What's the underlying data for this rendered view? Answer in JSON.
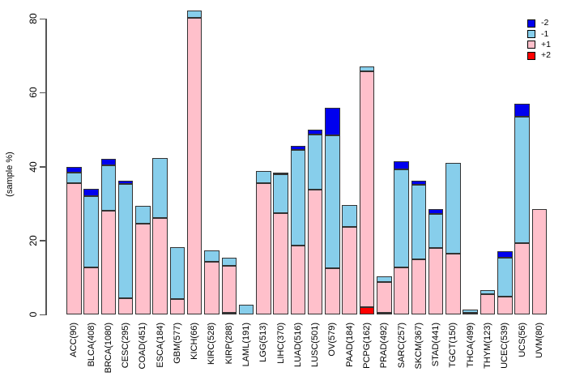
{
  "figure": {
    "y_axis": {
      "title": "(sample %)",
      "ticks": [
        0,
        20,
        40,
        60,
        80
      ]
    },
    "legend": [
      {
        "label": "-2",
        "color": "#0000EE"
      },
      {
        "label": "-1",
        "color": "#87CEEB"
      },
      {
        "label": "+1",
        "color": "#FFC0CB"
      },
      {
        "label": "+2",
        "color": "#FF0000"
      }
    ]
  },
  "chart_data": {
    "type": "bar",
    "stacked": true,
    "title": "",
    "xlabel": "",
    "ylabel": "(sample %)",
    "ylim": [
      0,
      82
    ],
    "grid": false,
    "legend_position": "top-right",
    "stack_order_bottom_to_top": [
      "+2",
      "+1",
      "-1",
      "-2"
    ],
    "categories": [
      "ACC(90)",
      "BLCA(408)",
      "BRCA(1080)",
      "CESC(295)",
      "COAD(451)",
      "ESCA(184)",
      "GBM(577)",
      "KICH(66)",
      "KIRC(528)",
      "KIRP(288)",
      "LAML(191)",
      "LGG(513)",
      "LIHC(370)",
      "LUAD(516)",
      "LUSC(501)",
      "OV(579)",
      "PAAD(184)",
      "PCPG(162)",
      "PRAD(492)",
      "SARC(257)",
      "SKCM(367)",
      "STAD(441)",
      "TGCT(150)",
      "THCA(499)",
      "THYM(123)",
      "UCEC(539)",
      "UCS(56)",
      "UVM(80)"
    ],
    "series": [
      {
        "name": "+2",
        "color": "#FF0000",
        "values": [
          0,
          0,
          0,
          0,
          0,
          0,
          0,
          0,
          0,
          0.4,
          0,
          0,
          0,
          0,
          0,
          0,
          0,
          1.9,
          0.4,
          0,
          0,
          0,
          0,
          0,
          0,
          0,
          0,
          0
        ]
      },
      {
        "name": "+1",
        "color": "#FFC0CB",
        "values": [
          35.6,
          12.7,
          28.0,
          4.4,
          24.5,
          26.0,
          4.1,
          80.3,
          14.2,
          12.7,
          0,
          35.5,
          27.5,
          18.7,
          33.7,
          12.5,
          23.7,
          63.8,
          8.3,
          12.7,
          14.9,
          18.0,
          16.4,
          0.4,
          5.5,
          4.8,
          19.4,
          28.6
        ]
      },
      {
        "name": "-1",
        "color": "#87CEEB",
        "values": [
          2.8,
          19.4,
          12.3,
          30.8,
          4.9,
          16.3,
          14.1,
          1.8,
          3.2,
          2.2,
          2.6,
          3.3,
          10.4,
          25.8,
          15.0,
          36.0,
          6.0,
          1.4,
          1.6,
          26.5,
          20.1,
          9.2,
          24.6,
          1.0,
          1.1,
          10.6,
          34.0,
          0
        ]
      },
      {
        "name": "-2",
        "color": "#0000EE",
        "values": [
          1.5,
          1.9,
          1.8,
          1.0,
          0,
          0,
          0,
          0,
          0,
          0,
          0,
          0,
          0.5,
          1.2,
          1.2,
          7.3,
          0,
          0,
          0,
          2.2,
          1.2,
          1.4,
          0,
          0,
          0,
          1.7,
          3.6,
          0
        ]
      }
    ]
  }
}
